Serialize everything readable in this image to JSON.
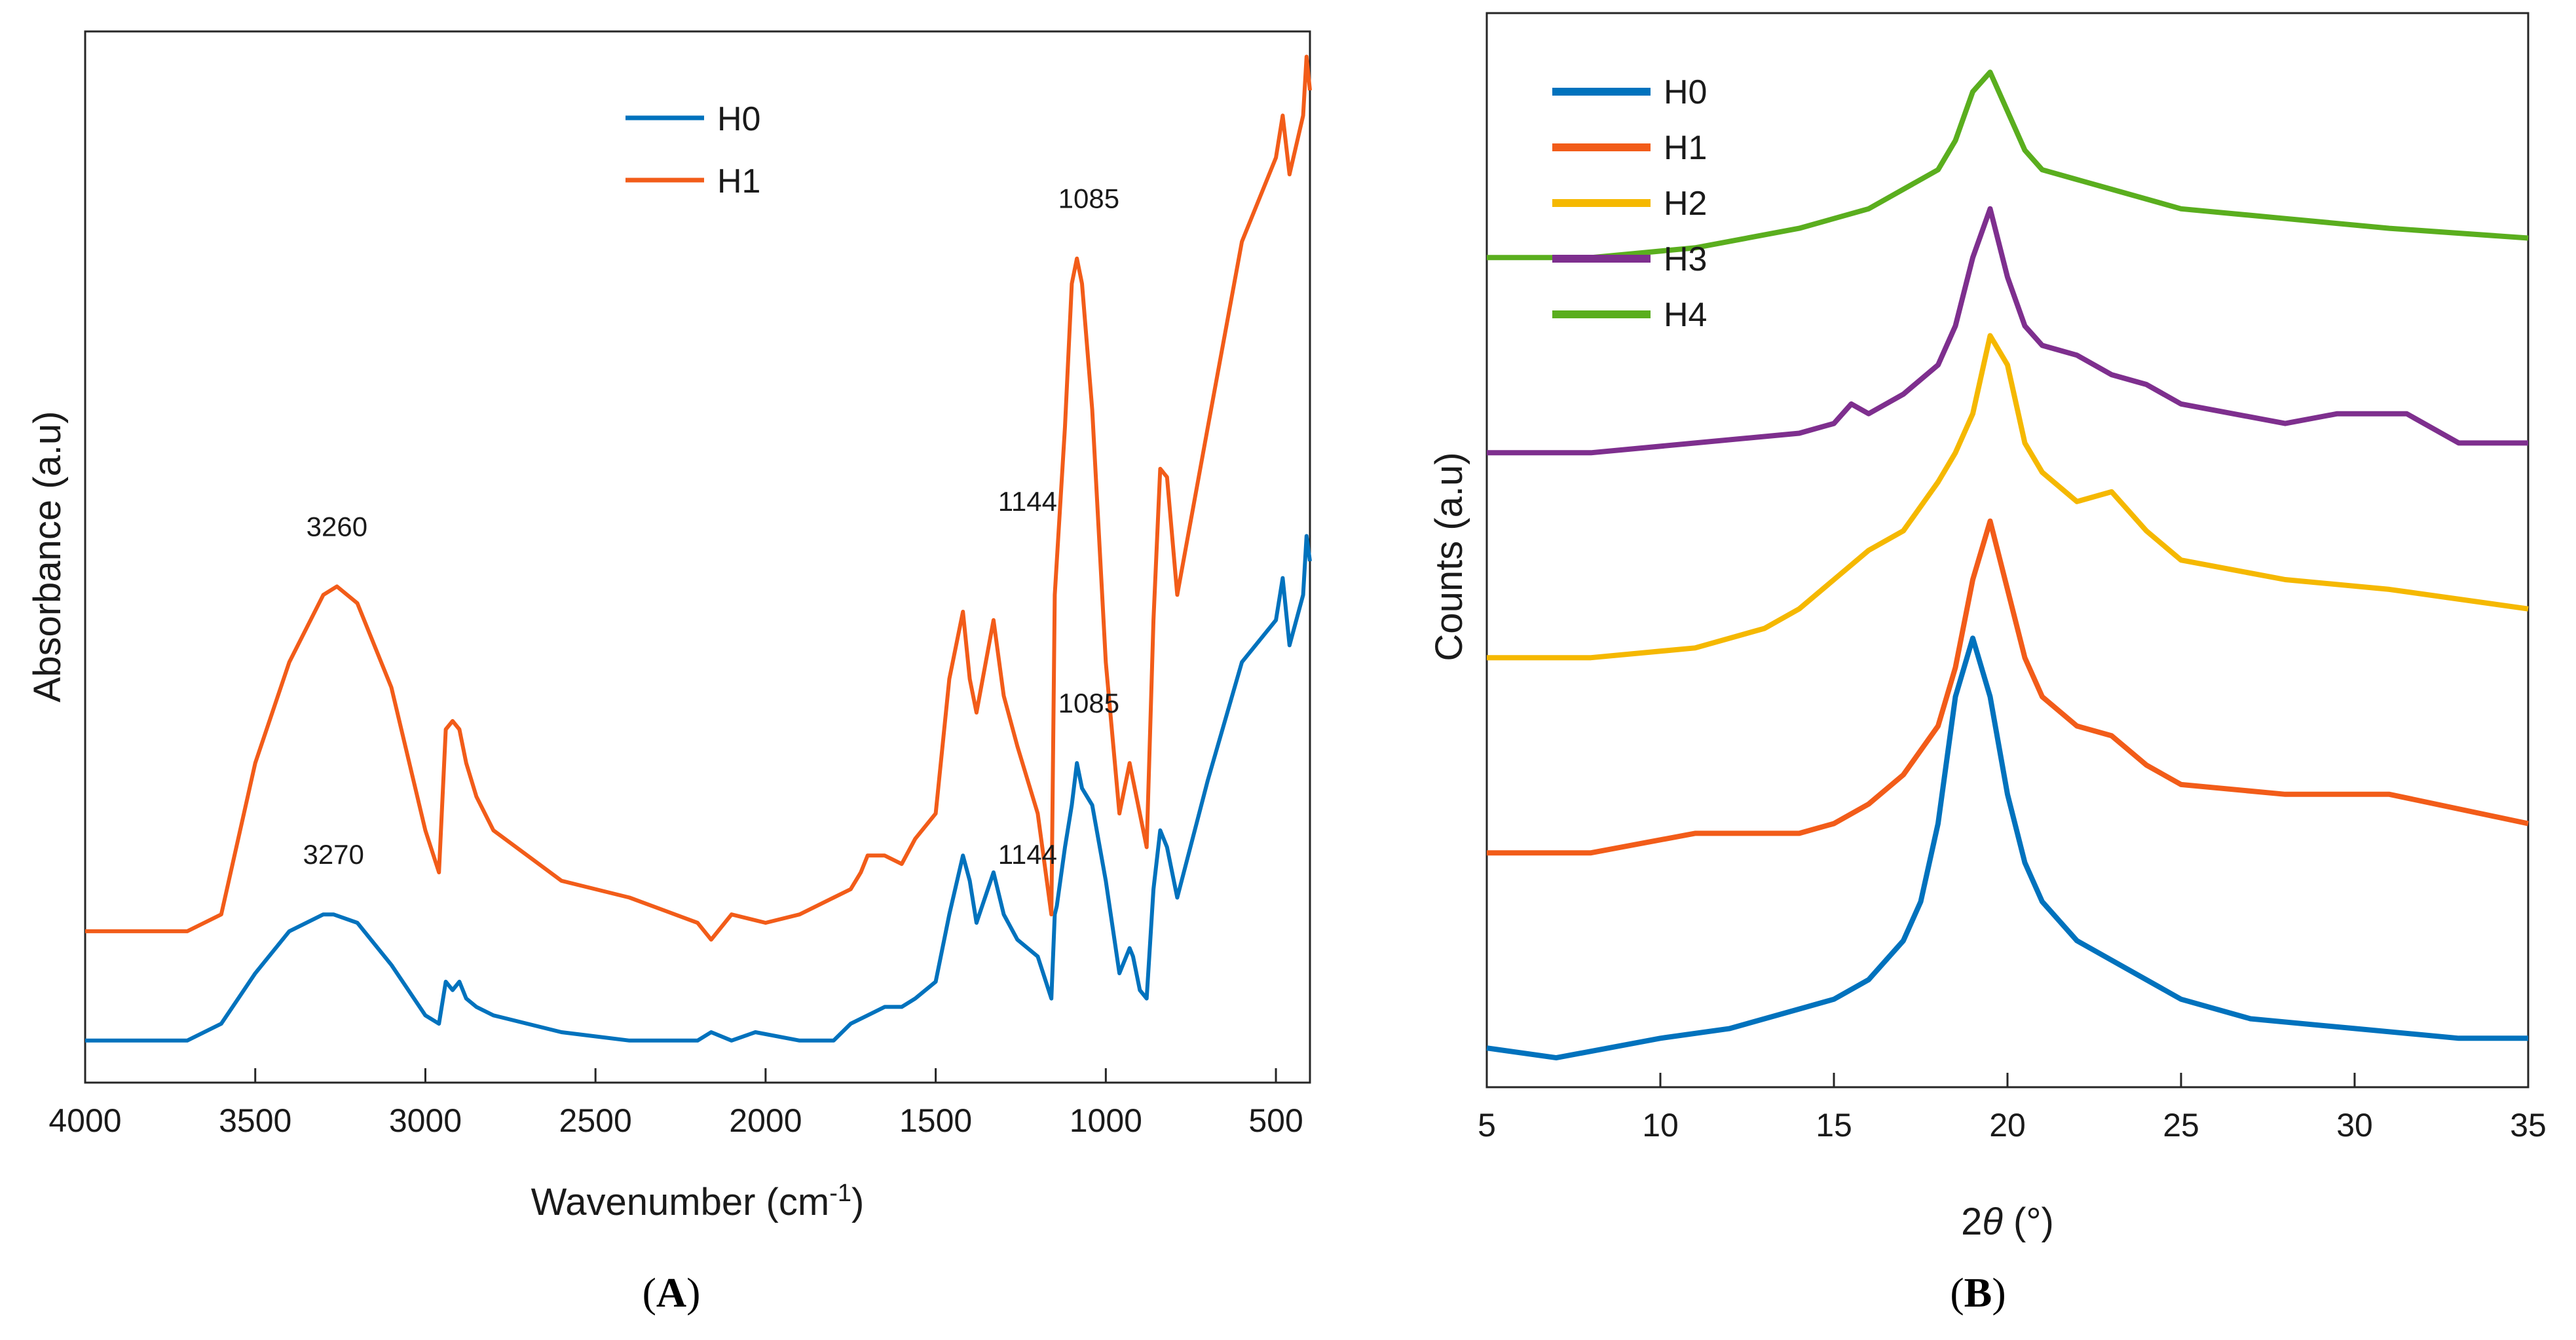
{
  "chart_data": [
    {
      "id": "A",
      "type": "line",
      "panel_label": "A",
      "xlabel": "Wavenumber (cm",
      "xlabel_sup": "-1",
      "xlabel_end": ")",
      "ylabel": "Absorbance (a.u)",
      "xlim": [
        4000,
        400
      ],
      "x_reversed": true,
      "ylim": [
        0,
        1.25
      ],
      "xticks": [
        4000,
        3500,
        3000,
        2500,
        2000,
        1500,
        1000,
        500
      ],
      "legend": [
        "H0",
        "H1"
      ],
      "legend_position": "top-center",
      "series": [
        {
          "name": "H0",
          "color": "#0072BD",
          "x": [
            4000,
            3700,
            3600,
            3500,
            3400,
            3300,
            3270,
            3200,
            3100,
            3000,
            2960,
            2940,
            2920,
            2900,
            2880,
            2850,
            2800,
            2600,
            2400,
            2200,
            2160,
            2100,
            2030,
            1900,
            1800,
            1750,
            1700,
            1650,
            1600,
            1560,
            1500,
            1460,
            1420,
            1400,
            1380,
            1330,
            1300,
            1260,
            1200,
            1160,
            1150,
            1144,
            1120,
            1100,
            1085,
            1070,
            1040,
            1000,
            960,
            930,
            920,
            900,
            880,
            860,
            840,
            820,
            790,
            700,
            600,
            500,
            480,
            460,
            420,
            410,
            400
          ],
          "y": [
            0.05,
            0.05,
            0.07,
            0.13,
            0.18,
            0.2,
            0.2,
            0.19,
            0.14,
            0.08,
            0.07,
            0.12,
            0.11,
            0.12,
            0.1,
            0.09,
            0.08,
            0.06,
            0.05,
            0.05,
            0.06,
            0.05,
            0.06,
            0.05,
            0.05,
            0.07,
            0.08,
            0.09,
            0.09,
            0.1,
            0.12,
            0.2,
            0.27,
            0.24,
            0.19,
            0.25,
            0.2,
            0.17,
            0.15,
            0.1,
            0.2,
            0.21,
            0.28,
            0.33,
            0.38,
            0.35,
            0.33,
            0.24,
            0.13,
            0.16,
            0.15,
            0.11,
            0.1,
            0.23,
            0.3,
            0.28,
            0.22,
            0.36,
            0.5,
            0.55,
            0.6,
            0.52,
            0.58,
            0.65,
            0.62
          ]
        },
        {
          "name": "H1",
          "color": "#F25C19",
          "x": [
            4000,
            3700,
            3600,
            3500,
            3400,
            3300,
            3260,
            3200,
            3100,
            3000,
            2960,
            2940,
            2920,
            2900,
            2880,
            2850,
            2800,
            2700,
            2600,
            2400,
            2200,
            2160,
            2100,
            2000,
            1900,
            1800,
            1750,
            1720,
            1700,
            1650,
            1600,
            1560,
            1500,
            1460,
            1420,
            1400,
            1380,
            1330,
            1300,
            1260,
            1200,
            1160,
            1150,
            1144,
            1120,
            1100,
            1085,
            1070,
            1040,
            1000,
            960,
            930,
            920,
            900,
            880,
            860,
            840,
            820,
            790,
            700,
            600,
            500,
            480,
            460,
            420,
            410,
            400
          ],
          "y": [
            0.18,
            0.18,
            0.2,
            0.38,
            0.5,
            0.58,
            0.59,
            0.57,
            0.47,
            0.3,
            0.25,
            0.42,
            0.43,
            0.42,
            0.38,
            0.34,
            0.3,
            0.27,
            0.24,
            0.22,
            0.19,
            0.17,
            0.2,
            0.19,
            0.2,
            0.22,
            0.23,
            0.25,
            0.27,
            0.27,
            0.26,
            0.29,
            0.32,
            0.48,
            0.56,
            0.48,
            0.44,
            0.55,
            0.46,
            0.4,
            0.32,
            0.2,
            0.58,
            0.62,
            0.78,
            0.95,
            0.98,
            0.95,
            0.8,
            0.5,
            0.32,
            0.38,
            0.36,
            0.32,
            0.28,
            0.55,
            0.73,
            0.72,
            0.58,
            0.78,
            1.0,
            1.1,
            1.15,
            1.08,
            1.15,
            1.22,
            1.18
          ]
        }
      ],
      "annotations": [
        {
          "text": "3260",
          "x": 3260,
          "y": 0.65
        },
        {
          "text": "3270",
          "x": 3270,
          "y": 0.26
        },
        {
          "text": "1085",
          "x": 1050,
          "y": 1.04
        },
        {
          "text": "1144",
          "x": 1230,
          "y": 0.68
        },
        {
          "text": "1085",
          "x": 1050,
          "y": 0.44
        },
        {
          "text": "1144",
          "x": 1230,
          "y": 0.26
        }
      ]
    },
    {
      "id": "B",
      "type": "line",
      "panel_label": "B",
      "xlabel": "2",
      "xlabel_theta": "θ",
      "xlabel_end": " (°)",
      "ylabel": "Counts (a.u)",
      "xlim": [
        5,
        35
      ],
      "ylim": [
        0,
        1.0
      ],
      "xticks": [
        5,
        10,
        15,
        20,
        25,
        30,
        35
      ],
      "legend": [
        "H0",
        "H1",
        "H2",
        "H3",
        "H4"
      ],
      "legend_position": "top-left",
      "series": [
        {
          "name": "H0",
          "color": "#0072BD",
          "x": [
            5,
            7,
            10,
            12,
            14,
            15,
            16,
            17,
            17.5,
            18,
            18.5,
            19,
            19.5,
            20,
            20.5,
            21,
            22,
            23,
            25,
            27,
            30,
            33,
            35
          ],
          "y": [
            0.02,
            0.01,
            0.03,
            0.04,
            0.06,
            0.07,
            0.09,
            0.13,
            0.17,
            0.25,
            0.38,
            0.44,
            0.38,
            0.28,
            0.21,
            0.17,
            0.13,
            0.11,
            0.07,
            0.05,
            0.04,
            0.03,
            0.03
          ]
        },
        {
          "name": "H1",
          "color": "#F25C19",
          "x": [
            5,
            8,
            11,
            14,
            15,
            16,
            17,
            18,
            18.5,
            19,
            19.5,
            20,
            20.5,
            21,
            22,
            23,
            24,
            25,
            28,
            31,
            35
          ],
          "y": [
            0.22,
            0.22,
            0.24,
            0.24,
            0.25,
            0.27,
            0.3,
            0.35,
            0.41,
            0.5,
            0.56,
            0.49,
            0.42,
            0.38,
            0.35,
            0.34,
            0.31,
            0.29,
            0.28,
            0.28,
            0.25
          ]
        },
        {
          "name": "H2",
          "color": "#F5B800",
          "x": [
            5,
            8,
            11,
            13,
            14,
            15,
            16,
            17,
            18,
            18.5,
            19,
            19.5,
            20,
            20.5,
            21,
            22,
            23,
            24,
            25,
            28,
            31,
            35
          ],
          "y": [
            0.42,
            0.42,
            0.43,
            0.45,
            0.47,
            0.5,
            0.53,
            0.55,
            0.6,
            0.63,
            0.67,
            0.75,
            0.72,
            0.64,
            0.61,
            0.58,
            0.59,
            0.55,
            0.52,
            0.5,
            0.49,
            0.47
          ]
        },
        {
          "name": "H3",
          "color": "#7E2F8E",
          "x": [
            5,
            8,
            11,
            14,
            15,
            15.5,
            16,
            17,
            18,
            18.5,
            19,
            19.5,
            20,
            20.5,
            21,
            22,
            23,
            24,
            25,
            28,
            29.5,
            31.5,
            33,
            35
          ],
          "y": [
            0.63,
            0.63,
            0.64,
            0.65,
            0.66,
            0.68,
            0.67,
            0.69,
            0.72,
            0.76,
            0.83,
            0.88,
            0.81,
            0.76,
            0.74,
            0.73,
            0.71,
            0.7,
            0.68,
            0.66,
            0.67,
            0.67,
            0.64,
            0.64
          ]
        },
        {
          "name": "H4",
          "color": "#5AAE1E",
          "x": [
            5,
            8,
            11,
            14,
            16,
            17,
            18,
            18.5,
            19,
            19.5,
            20,
            20.5,
            21,
            22,
            23,
            24,
            25,
            28,
            31,
            35
          ],
          "y": [
            0.83,
            0.83,
            0.84,
            0.86,
            0.88,
            0.9,
            0.92,
            0.95,
            1.0,
            1.02,
            0.98,
            0.94,
            0.92,
            0.91,
            0.9,
            0.89,
            0.88,
            0.87,
            0.86,
            0.85
          ]
        }
      ]
    }
  ]
}
